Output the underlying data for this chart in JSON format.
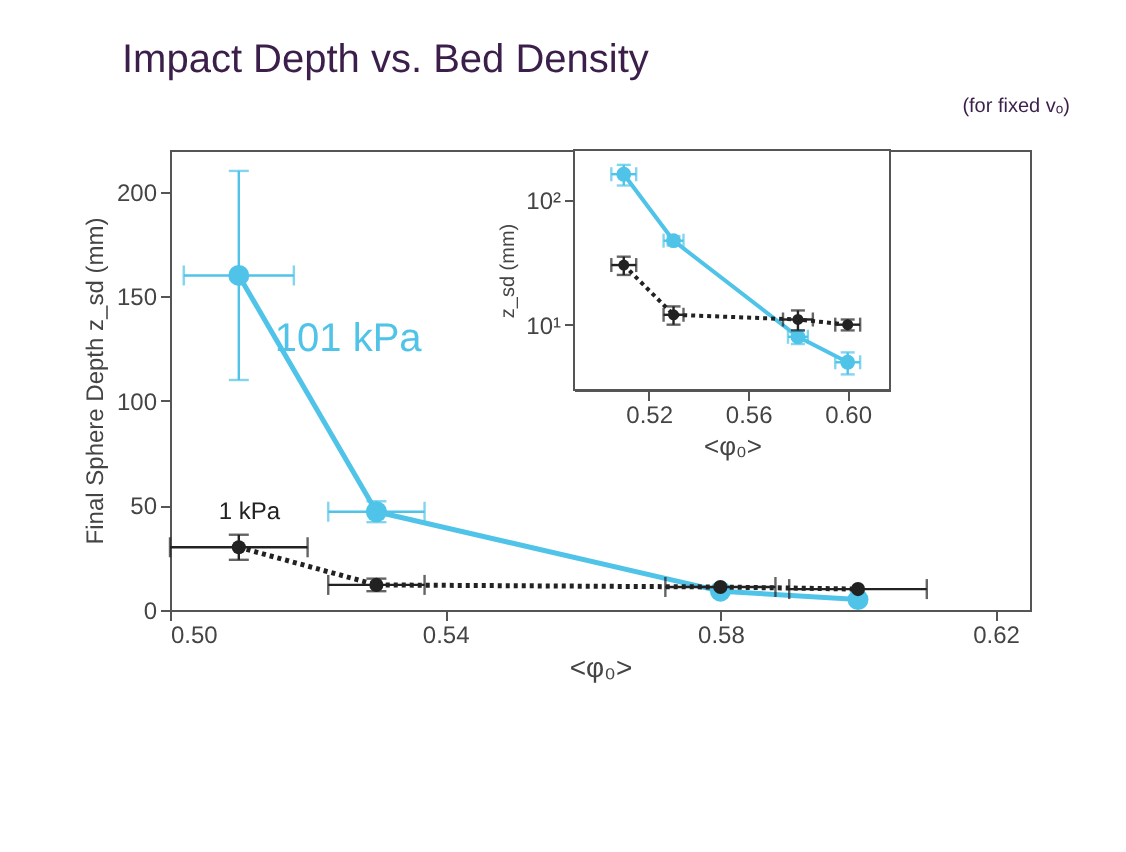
{
  "chart_data": [
    {
      "type": "line",
      "title": "Impact Depth vs. Bed Density",
      "subtitle": "(for fixed vₒ)",
      "xlabel": "<φ₀>",
      "ylabel": "Final Sphere Depth z_sd (mm)",
      "x": [
        0.51,
        0.53,
        0.58,
        0.6
      ],
      "xlim": [
        0.5,
        0.625
      ],
      "xticks": [
        {
          "value": 0.5,
          "label": "0.50"
        },
        0.54,
        0.58,
        0.62
      ],
      "ylim": [
        0,
        220
      ],
      "yticks": [
        0,
        50,
        100,
        150,
        200
      ],
      "marker": "circle",
      "grid": false,
      "series": [
        {
          "name": "101 kPa",
          "color": "#4fc3e8",
          "line_style": "solid",
          "values": [
            160,
            47,
            9,
            5
          ],
          "errors": [
            50,
            5,
            null,
            null
          ],
          "xerrors": [
            0.008,
            0.007,
            null,
            null
          ]
        },
        {
          "name": "1 kPa",
          "color": "#222222",
          "line_style": "dotted",
          "values": [
            30,
            12,
            11,
            10
          ],
          "errors": [
            6,
            3,
            null,
            null
          ],
          "xerrors": [
            0.01,
            0.007,
            0.008,
            0.01
          ]
        }
      ]
    },
    {
      "type": "line",
      "xlabel": "<φ₀>",
      "ylabel": "z_sd (mm)",
      "log": "y",
      "x": [
        0.51,
        0.53,
        0.58,
        0.6
      ],
      "xlim": [
        0.49,
        0.617
      ],
      "xticks": [
        0.52,
        0.56,
        {
          "value": 0.6,
          "label": "0.60"
        }
      ],
      "ylim": [
        3,
        250
      ],
      "yticks": [
        {
          "value": 10,
          "label": "10¹"
        },
        {
          "value": 100,
          "label": "10²"
        }
      ],
      "marker": "circle",
      "grid": false,
      "series": [
        {
          "color": "#4fc3e8",
          "line_style": "solid",
          "values": [
            160,
            47,
            8,
            5
          ],
          "errors": [
            30,
            4,
            1,
            1
          ],
          "xerrors": [
            0.005,
            0.004,
            0.004,
            0.005
          ]
        },
        {
          "color": "#222222",
          "line_style": "dotted",
          "values": [
            30,
            12,
            11,
            10
          ],
          "errors": [
            5,
            2,
            2,
            1
          ],
          "xerrors": [
            0.005,
            0.004,
            0.006,
            0.005
          ]
        }
      ]
    }
  ]
}
